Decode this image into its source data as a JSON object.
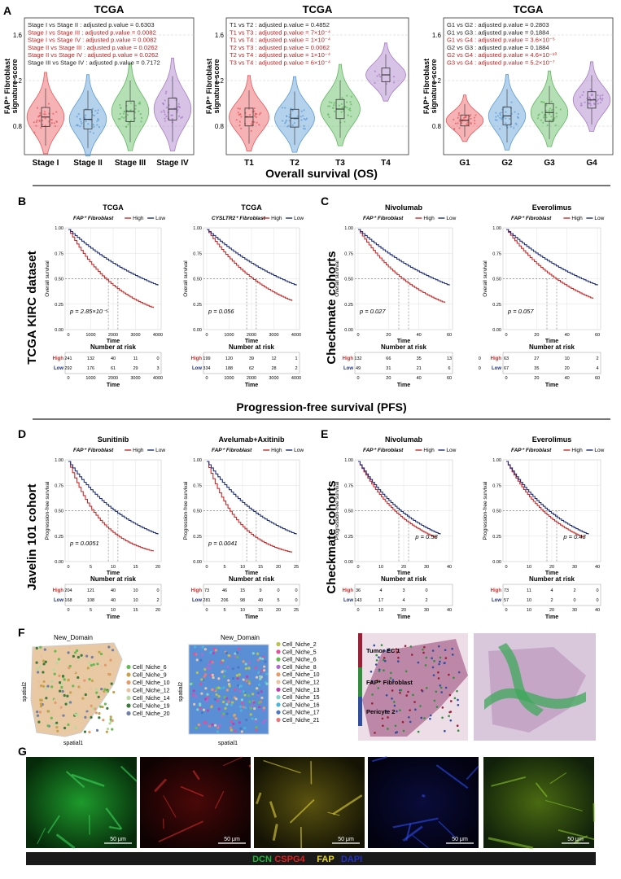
{
  "panel_letters": [
    "A",
    "B",
    "C",
    "D",
    "E",
    "F",
    "G"
  ],
  "section_titles": {
    "os": "Overall survival (OS)",
    "pfs": "Progression-free survival  (PFS)"
  },
  "side_labels": {
    "tcga": "TCGA KIRC dataset",
    "checkmate_os": "Checkmate cohorts",
    "javelin": "Javelin 101 cohort",
    "checkmate_pfs": "Checkmate cohorts"
  },
  "panelA": {
    "ylabel_line1": "FAP⁺ Fibroblast",
    "ylabel_line2": "signature score",
    "violins": [
      {
        "title": "TCGA",
        "yticks": [
          "1.6",
          "1.2",
          "0.8"
        ],
        "groups": [
          {
            "label": "Stage I",
            "color": "#e8575a"
          },
          {
            "label": "Stage II",
            "color": "#5b9bd5"
          },
          {
            "label": "Stage III",
            "color": "#5cb85c"
          },
          {
            "label": "Stage IV",
            "color": "#a77bc6"
          }
        ],
        "stats": [
          {
            "text": "Stage I vs Stage II : adjusted p.value = 0.6303",
            "sig": false
          },
          {
            "text": "Stage I vs Stage III : adjusted p.value = 0.0082",
            "sig": true
          },
          {
            "text": "Stage I vs Stage IV : adjusted p.value = 0.0082",
            "sig": true
          },
          {
            "text": "Stage II vs Stage III : adjusted p.value = 0.0262",
            "sig": true
          },
          {
            "text": "Stage II vs Stage IV : adjusted p.value = 0.0262",
            "sig": true
          },
          {
            "text": "Stage III vs Stage IV : adjusted p.value = 0.7172",
            "sig": false
          }
        ]
      },
      {
        "title": "TCGA",
        "yticks": [
          "1.6",
          "1.2",
          "0.8"
        ],
        "groups": [
          {
            "label": "T1",
            "color": "#e8575a"
          },
          {
            "label": "T2",
            "color": "#5b9bd5"
          },
          {
            "label": "T3",
            "color": "#5cb85c"
          },
          {
            "label": "T4",
            "color": "#a77bc6"
          }
        ],
        "stats": [
          {
            "text": "T1 vs T2 : adjusted p.value = 0.4852",
            "sig": false
          },
          {
            "text": "T1 vs T3 : adjusted p.value = 7×10⁻⁴",
            "sig": true
          },
          {
            "text": "T1 vs T4 : adjusted p.value = 1×10⁻⁴",
            "sig": true
          },
          {
            "text": "T2 vs T3 : adjusted p.value = 0.0062",
            "sig": true
          },
          {
            "text": "T2 vs T4 : adjusted p.value = 1×10⁻⁴",
            "sig": true
          },
          {
            "text": "T3 vs T4 : adjusted p.value = 6×10⁻⁴",
            "sig": true
          }
        ]
      },
      {
        "title": "TCGA",
        "yticks": [
          "1.6",
          "1.2",
          "0.8"
        ],
        "groups": [
          {
            "label": "G1",
            "color": "#e8575a"
          },
          {
            "label": "G2",
            "color": "#5b9bd5"
          },
          {
            "label": "G3",
            "color": "#5cb85c"
          },
          {
            "label": "G4",
            "color": "#a77bc6"
          }
        ],
        "stats": [
          {
            "text": "G1 vs G2 : adjusted p.value = 0.2803",
            "sig": false
          },
          {
            "text": "G1 vs G3 : adjusted p.value = 0.1884",
            "sig": false
          },
          {
            "text": "G1 vs G4 : adjusted p.value = 3.6×10⁻⁵",
            "sig": true
          },
          {
            "text": "G2 vs G3 : adjusted p.value = 0.1884",
            "sig": false
          },
          {
            "text": "G2 vs G4 : adjusted p.value = 4.6×10⁻¹⁰",
            "sig": true
          },
          {
            "text": "G3 vs G4 : adjusted p.value = 5.2×10⁻⁷",
            "sig": true
          }
        ]
      }
    ]
  },
  "km": {
    "legend_high": "High",
    "legend_low": "Low",
    "risk_title": "Number at risk",
    "time_label": "Time",
    "high_color": "#cc2a2a",
    "low_color": "#1f2f7a",
    "os_ylabel": "Overall survival",
    "pfs_ylabel": "Progression-free survival",
    "yticks": [
      "1.00",
      "0.75",
      "0.50",
      "0.25",
      "0.00"
    ],
    "plots": [
      {
        "id": "b1",
        "title": "TCGA",
        "legend_prefix": "FAP⁺ Fibroblast",
        "pval": "p = 2.85×10⁻⁵",
        "xticks": [
          "0",
          "1000",
          "2000",
          "3000",
          "4000"
        ],
        "risk_high": [
          "241",
          "132",
          "40",
          "11",
          "0"
        ],
        "risk_low": [
          "292",
          "176",
          "61",
          "29",
          "3"
        ]
      },
      {
        "id": "b2",
        "title": "TCGA",
        "legend_prefix": "CYSLTR2⁺ Fibroblast",
        "pval": "p = 0.056",
        "xticks": [
          "0",
          "1000",
          "2000",
          "3000",
          "4000"
        ],
        "risk_high": [
          "199",
          "120",
          "39",
          "12",
          "1"
        ],
        "risk_low": [
          "334",
          "188",
          "62",
          "28",
          "2"
        ]
      },
      {
        "id": "c1",
        "title": "Nivolumab",
        "legend_prefix": "FAP⁺ Fibroblast",
        "pval": "p = 0.027",
        "xticks": [
          "0",
          "20",
          "40",
          "60"
        ],
        "risk_high": [
          "132",
          "66",
          "35",
          "13",
          "0"
        ],
        "risk_low": [
          "49",
          "31",
          "21",
          "6",
          "0"
        ]
      },
      {
        "id": "c2",
        "title": "Everolimus",
        "legend_prefix": "FAP⁺ Fibroblast",
        "pval": "p = 0.057",
        "xticks": [
          "0",
          "20",
          "40",
          "60"
        ],
        "risk_high": [
          "63",
          "27",
          "10",
          "2"
        ],
        "risk_low": [
          "67",
          "35",
          "20",
          "4"
        ]
      },
      {
        "id": "d1",
        "title": "Sunitinib",
        "legend_prefix": "FAP⁺ Fibroblast",
        "pval": "p = 0.0051",
        "xticks": [
          "0",
          "5",
          "10",
          "15",
          "20"
        ],
        "risk_high": [
          "204",
          "121",
          "40",
          "10",
          "0"
        ],
        "risk_low": [
          "168",
          "108",
          "40",
          "10",
          "2"
        ]
      },
      {
        "id": "d2",
        "title": "Avelumab+Axitinib",
        "legend_prefix": "FAP⁺ Fibroblast",
        "pval": "p = 0.0041",
        "xticks": [
          "0",
          "5",
          "10",
          "15",
          "20",
          "25"
        ],
        "risk_high": [
          "73",
          "46",
          "15",
          "9",
          "0",
          "0"
        ],
        "risk_low": [
          "281",
          "206",
          "98",
          "40",
          "5",
          "0"
        ]
      },
      {
        "id": "e1",
        "title": "Nivolumab",
        "legend_prefix": "FAP⁺ Fibroblast",
        "pval": "p = 0.58",
        "xticks": [
          "0",
          "10",
          "20",
          "30",
          "40"
        ],
        "risk_high": [
          "36",
          "4",
          "3",
          "0"
        ],
        "risk_low": [
          "143",
          "17",
          "4",
          "2"
        ]
      },
      {
        "id": "e2",
        "title": "Everolimus",
        "legend_prefix": "FAP⁺ Fibroblast",
        "pval": "p = 0.43",
        "xticks": [
          "0",
          "10",
          "20",
          "30",
          "40"
        ],
        "risk_high": [
          "73",
          "11",
          "4",
          "2",
          "0"
        ],
        "risk_low": [
          "57",
          "10",
          "2",
          "0",
          "0"
        ]
      }
    ]
  },
  "panelF": {
    "domain_title": "New_Domain",
    "xlabel": "spatial1",
    "ylabel": "spatial2",
    "legend1": [
      {
        "label": "Cell_Niche_6",
        "color": "#66bb55"
      },
      {
        "label": "Cell_Niche_9",
        "color": "#c8a24a"
      },
      {
        "label": "Cell_Niche_10",
        "color": "#e59a6a"
      },
      {
        "label": "Cell_Niche_12",
        "color": "#e7c3a4"
      },
      {
        "label": "Cell_Niche_14",
        "color": "#b7d99f"
      },
      {
        "label": "Cell_Niche_19",
        "color": "#3a7a3a"
      },
      {
        "label": "Cell_Niche_20",
        "color": "#6f7fa8"
      }
    ],
    "legend2": [
      {
        "label": "Cell_Niche_2",
        "color": "#b6c24a"
      },
      {
        "label": "Cell_Niche_5",
        "color": "#e24f9a"
      },
      {
        "label": "Cell_Niche_6",
        "color": "#66bb55"
      },
      {
        "label": "Cell_Niche_8",
        "color": "#b06bd0"
      },
      {
        "label": "Cell_Niche_10",
        "color": "#e59a6a"
      },
      {
        "label": "Cell_Niche_12",
        "color": "#e7c3a4"
      },
      {
        "label": "Cell_Niche_13",
        "color": "#c040b0"
      },
      {
        "label": "Cell_Niche_15",
        "color": "#7fd3c8"
      },
      {
        "label": "Cell_Niche_16",
        "color": "#49b6d8"
      },
      {
        "label": "Cell_Niche_17",
        "color": "#4a78c6"
      },
      {
        "label": "Cell_Niche_21",
        "color": "#e9787a"
      }
    ],
    "celltypes": [
      {
        "label": "Tumor EC 1",
        "color": "#9c1f35"
      },
      {
        "label": "FAP⁺ Fibroblast",
        "color": "#2f8f3c"
      },
      {
        "label": "Pericyte 2",
        "color": "#2f4ea2"
      }
    ]
  },
  "panelG": {
    "scale": "50 μm",
    "channels": [
      {
        "label": "DCN",
        "color": "#22b33a"
      },
      {
        "label": "CSPG4",
        "color": "#e02020"
      },
      {
        "label": "FAP",
        "color": "#e8d620"
      },
      {
        "label": "DAPI",
        "color": "#2030c8"
      }
    ]
  }
}
